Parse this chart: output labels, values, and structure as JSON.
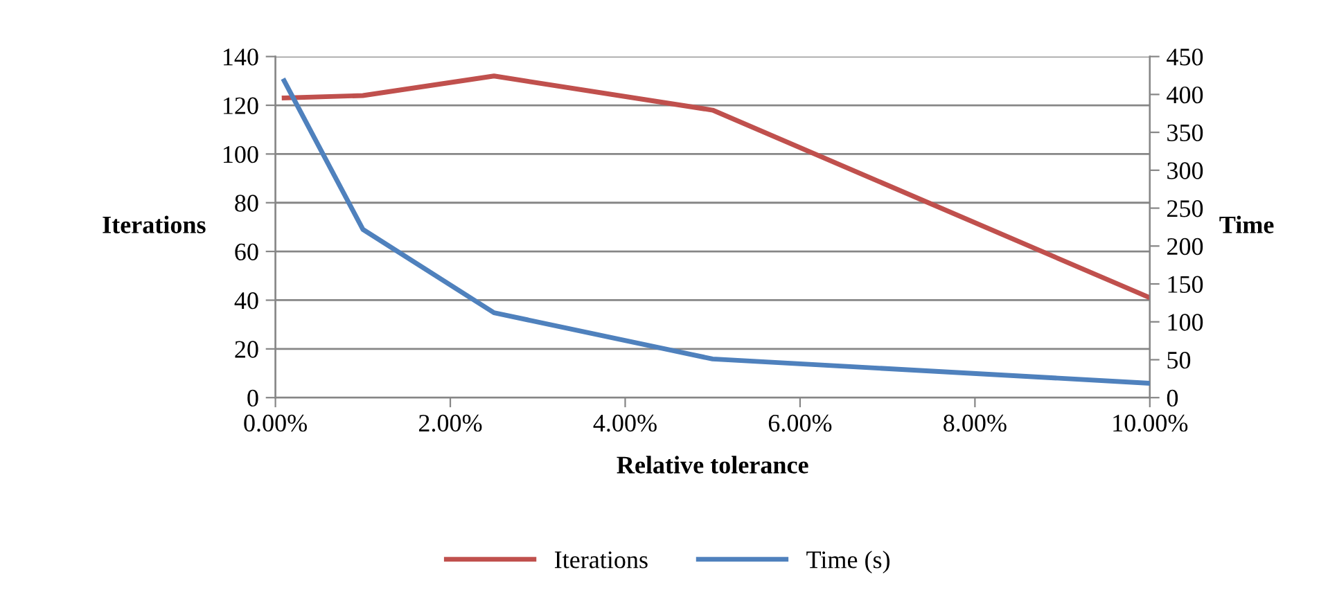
{
  "chart_data": {
    "type": "line",
    "xlabel": "Relative tolerance",
    "ylabel": "Iterations",
    "y2label": "Time",
    "x": [
      0.1,
      1,
      2.5,
      5,
      10
    ],
    "series": [
      {
        "name": "Iterations",
        "color": "#c0504d",
        "values": [
          123,
          124,
          132,
          118,
          41
        ]
      },
      {
        "name": "Time (s)",
        "color": "#4f81bd",
        "axis": "y2",
        "values": [
          418,
          222,
          112,
          51,
          19
        ]
      }
    ],
    "xlim": [
      0,
      10
    ],
    "xticks": [
      {
        "value": 0,
        "label": "0.00%"
      },
      {
        "value": 2,
        "label": "2.00%"
      },
      {
        "value": 4,
        "label": "4.00%"
      },
      {
        "value": 6,
        "label": "6.00%"
      },
      {
        "value": 8,
        "label": "8.00%"
      },
      {
        "value": 10,
        "label": "10.00%"
      }
    ],
    "ylim": [
      0,
      140
    ],
    "yticks": [
      0,
      20,
      40,
      60,
      80,
      100,
      120,
      140
    ],
    "y2lim": [
      0,
      450
    ],
    "y2ticks": [
      0,
      50,
      100,
      150,
      200,
      250,
      300,
      350,
      400,
      450
    ],
    "grid": "y",
    "legend": "bottom",
    "marker": "none",
    "line_style": "solid"
  }
}
